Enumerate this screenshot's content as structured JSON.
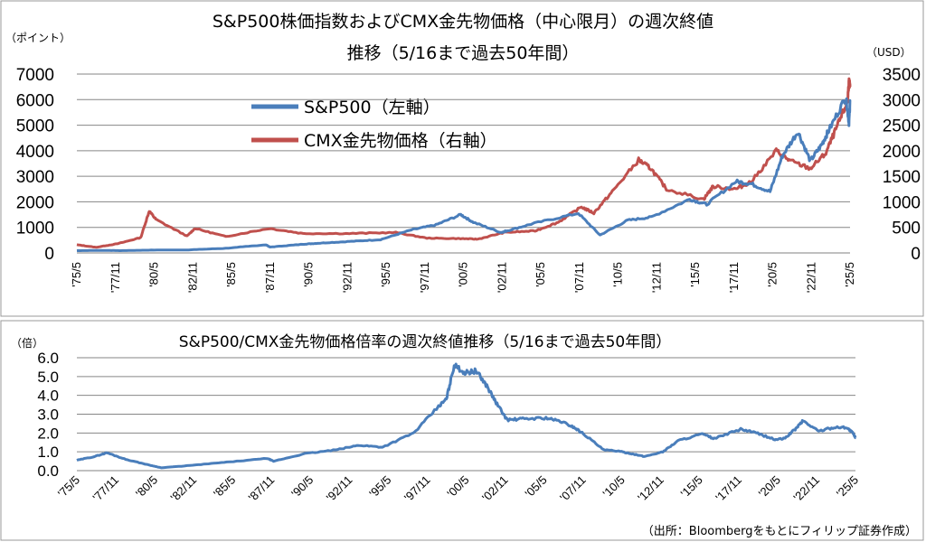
{
  "chart_data": [
    {
      "type": "line",
      "title_line1": "S&P500株価指数およびCMX金先物価格（中心限月）の週次終値",
      "title_line2": "推移（5/16まで過去50年間）",
      "left_unit": "（ポイント）",
      "right_unit": "（USD）",
      "ylim_left": [
        0,
        7000
      ],
      "ylim_right": [
        0,
        3500
      ],
      "yticks_left": [
        "0",
        "1000",
        "2000",
        "3000",
        "4000",
        "5000",
        "6000",
        "7000"
      ],
      "yticks_right": [
        "0",
        "500",
        "1000",
        "1500",
        "2000",
        "2500",
        "3000",
        "3500"
      ],
      "x_start": 1975.37,
      "x_end": 2025.37,
      "x_tick_labels": [
        "'75/5",
        "'77/11",
        "'80/5",
        "'82/11",
        "'85/5",
        "'87/11",
        "'90/5",
        "'92/11",
        "'95/5",
        "'97/11",
        "'00/5",
        "'02/11",
        "'05/5",
        "'07/11",
        "'10/5",
        "'12/11",
        "'15/5",
        "'17/11",
        "'20/5",
        "'22/11",
        "'25/5"
      ],
      "legend_placement": "upper-left",
      "grid": true,
      "series": [
        {
          "name": "S&P500（左軸）",
          "axis": "left",
          "color": "#4a7ebb",
          "x": [
            1975.37,
            1977.0,
            1978.2,
            1980.0,
            1982.6,
            1985.0,
            1987.6,
            1987.85,
            1990.0,
            1991.0,
            1993.0,
            1995.0,
            1997.0,
            1998.6,
            2000.2,
            2001.0,
            2002.8,
            2003.2,
            2005.0,
            2007.8,
            2009.2,
            2011.0,
            2012.5,
            2015.0,
            2016.1,
            2018.0,
            2019.0,
            2020.2,
            2021.0,
            2022.0,
            2022.8,
            2023.5,
            2024.0,
            2025.1,
            2025.3,
            2025.37
          ],
          "y": [
            90,
            100,
            90,
            110,
            120,
            180,
            320,
            230,
            340,
            380,
            450,
            520,
            900,
            1100,
            1500,
            1200,
            800,
            870,
            1170,
            1550,
            700,
            1280,
            1400,
            2100,
            1900,
            2800,
            2700,
            2400,
            3800,
            4750,
            3600,
            4200,
            4800,
            6100,
            5100,
            5950
          ]
        },
        {
          "name": "CMX金先物価格（右軸）",
          "axis": "right",
          "color": "#c0504d",
          "x": [
            1975.37,
            1976.6,
            1978.0,
            1979.5,
            1980.05,
            1980.5,
            1982.5,
            1983.0,
            1985.0,
            1987.8,
            1990.0,
            1993.0,
            1996.0,
            1998.0,
            2000.2,
            2001.3,
            2003.0,
            2005.0,
            2006.5,
            2008.0,
            2008.8,
            2010.0,
            2011.7,
            2012.5,
            2013.5,
            2015.9,
            2016.5,
            2018.0,
            2019.0,
            2020.6,
            2021.5,
            2022.8,
            2023.8,
            2024.5,
            2025.2,
            2025.3,
            2025.37
          ],
          "y": [
            160,
            110,
            180,
            300,
            820,
            650,
            330,
            480,
            320,
            480,
            380,
            380,
            400,
            290,
            280,
            270,
            400,
            430,
            600,
            900,
            780,
            1200,
            1820,
            1650,
            1250,
            1050,
            1300,
            1250,
            1400,
            2000,
            1800,
            1650,
            1950,
            2450,
            2950,
            3350,
            3250
          ]
        }
      ]
    },
    {
      "type": "line",
      "title": "S&P500/CMX金先物価格倍率の週次終値推移（5/16まで過去50年間）",
      "left_unit": "（倍）",
      "ylim": [
        0,
        6
      ],
      "yticks": [
        "0.0",
        "1.0",
        "2.0",
        "3.0",
        "4.0",
        "5.0",
        "6.0"
      ],
      "x_start": 1975.37,
      "x_end": 2025.37,
      "x_tick_labels": [
        "'75/5",
        "'77/11",
        "'80/5",
        "'82/11",
        "'85/5",
        "'87/11",
        "'90/5",
        "'92/11",
        "'95/5",
        "'97/11",
        "'00/5",
        "'02/11",
        "'05/5",
        "'07/11",
        "'10/5",
        "'12/11",
        "'15/5",
        "'17/11",
        "'20/5",
        "'22/11",
        "'25/5"
      ],
      "grid": true,
      "series": [
        {
          "color": "#4a7ebb",
          "x": [
            1975.37,
            1976.5,
            1977.3,
            1978.5,
            1980.0,
            1980.8,
            1983.0,
            1985.0,
            1987.6,
            1988.0,
            1990.0,
            1992.0,
            1993.5,
            1995.0,
            1997.0,
            1998.6,
            1999.1,
            1999.6,
            2000.3,
            2001.0,
            2001.7,
            2002.3,
            2003.0,
            2004.0,
            2005.5,
            2006.5,
            2007.3,
            2008.0,
            2009.2,
            2010.0,
            2011.0,
            2011.8,
            2013.0,
            2014.0,
            2015.5,
            2016.3,
            2018.0,
            2019.0,
            2020.2,
            2020.8,
            2021.5,
            2022.0,
            2023.0,
            2024.0,
            2024.8,
            2025.2,
            2025.37
          ],
          "y": [
            0.55,
            0.75,
            0.95,
            0.6,
            0.3,
            0.15,
            0.3,
            0.45,
            0.65,
            0.5,
            0.9,
            1.1,
            1.35,
            1.25,
            2.0,
            3.4,
            3.8,
            5.6,
            5.2,
            5.3,
            4.5,
            3.6,
            2.7,
            2.75,
            2.8,
            2.6,
            2.3,
            1.9,
            1.1,
            1.05,
            0.9,
            0.75,
            1.0,
            1.6,
            1.95,
            1.7,
            2.2,
            2.0,
            1.65,
            1.7,
            2.2,
            2.65,
            2.1,
            2.3,
            2.3,
            2.0,
            1.75
          ]
        }
      ]
    }
  ],
  "source_note": "（出所：Bloombergをもとにフィリップ証券作成）"
}
